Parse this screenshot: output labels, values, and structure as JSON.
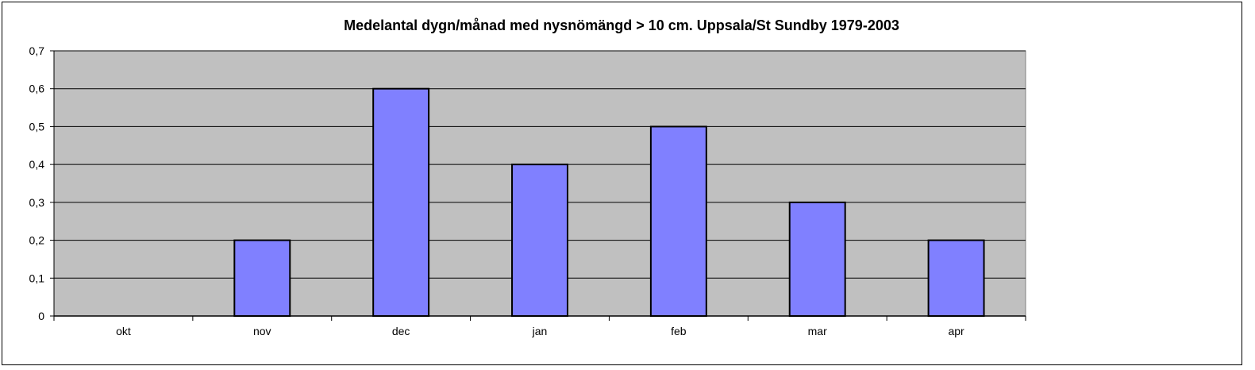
{
  "chart_data": {
    "type": "bar",
    "title": "Medelantal dygn/månad med nysnömängd > 10 cm. Uppsala/St Sundby 1979-2003",
    "xlabel": "",
    "ylabel": "",
    "categories": [
      "okt",
      "nov",
      "dec",
      "jan",
      "feb",
      "mar",
      "apr"
    ],
    "values": [
      0,
      0.2,
      0.6,
      0.4,
      0.5,
      0.3,
      0.2
    ],
    "ylim": [
      0,
      0.7
    ],
    "yticks": [
      0,
      0.1,
      0.2,
      0.3,
      0.4,
      0.5,
      0.6,
      0.7
    ],
    "ytick_labels": [
      "0",
      "0,1",
      "0,2",
      "0,3",
      "0,4",
      "0,5",
      "0,6",
      "0,7"
    ],
    "grid": true,
    "legend": "none",
    "colors": {
      "bar_fill": "#8080ff",
      "bar_stroke": "#000000",
      "plot_background": "#c0c0c0",
      "gridline": "#000000"
    }
  }
}
